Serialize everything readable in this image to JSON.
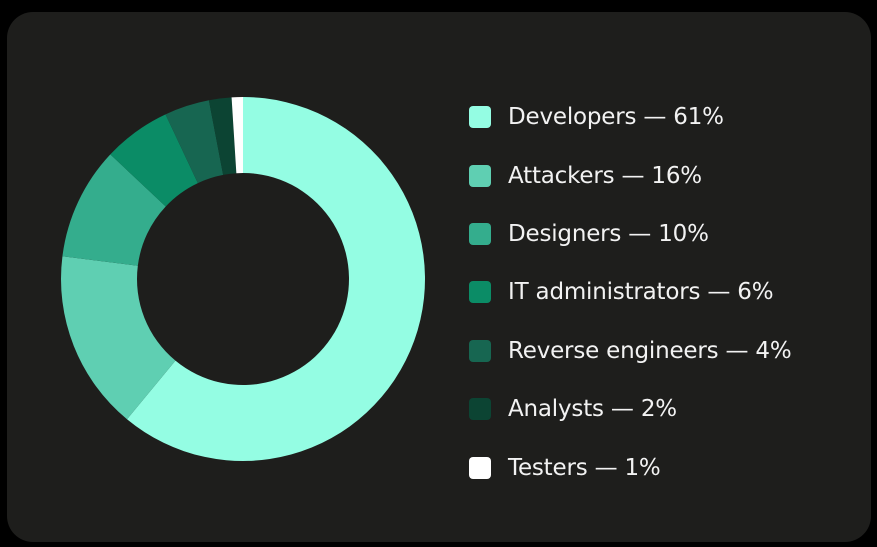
{
  "chart_data": {
    "type": "pie",
    "donut": true,
    "title": "",
    "legend_position": "right",
    "slices": [
      {
        "label": "Developers — 61%",
        "name": "Developers",
        "value": 61,
        "color": "#94fde3"
      },
      {
        "label": "Attackers — 16%",
        "name": "Attackers",
        "value": 16,
        "color": "#5fcfb2"
      },
      {
        "label": "Designers — 10%",
        "name": "Designers",
        "value": 10,
        "color": "#34ad8d"
      },
      {
        "label": "IT administrators — 6%",
        "name": "IT administrators",
        "value": 6,
        "color": "#0b8c66"
      },
      {
        "label": "Reverse engineers — 4%",
        "name": "Reverse engineers",
        "value": 4,
        "color": "#176651"
      },
      {
        "label": "Analysts — 2%",
        "name": "Analysts",
        "value": 2,
        "color": "#0c4433"
      },
      {
        "label": "Testers — 1%",
        "name": "Testers",
        "value": 1,
        "color": "#ffffff"
      }
    ]
  },
  "colors": {
    "background": "#000000",
    "card": "#1e1e1c",
    "text": "#f2f2f2"
  }
}
